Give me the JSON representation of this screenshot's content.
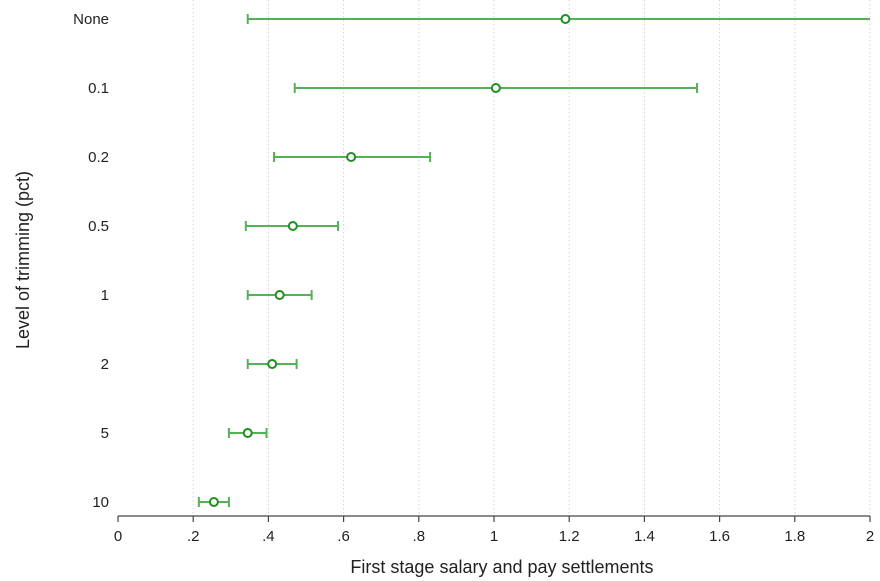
{
  "chart_data": {
    "type": "scatter",
    "orientation": "horizontal",
    "title": "",
    "xlabel": "First stage salary and pay settlements",
    "ylabel": "Level of trimming (pct)",
    "xlim": [
      0,
      2
    ],
    "x_ticks": [
      {
        "value": 0,
        "label": "0"
      },
      {
        "value": 0.2,
        "label": ".2"
      },
      {
        "value": 0.4,
        "label": ".4"
      },
      {
        "value": 0.6,
        "label": ".6"
      },
      {
        "value": 0.8,
        "label": ".8"
      },
      {
        "value": 1.0,
        "label": "1"
      },
      {
        "value": 1.2,
        "label": "1.2"
      },
      {
        "value": 1.4,
        "label": "1.4"
      },
      {
        "value": 1.6,
        "label": "1.6"
      },
      {
        "value": 1.8,
        "label": "1.8"
      },
      {
        "value": 2.0,
        "label": "2"
      }
    ],
    "grid": "vertical",
    "categories": [
      "None",
      "0.1",
      "0.2",
      "0.5",
      "1",
      "2",
      "5",
      "10"
    ],
    "estimates": [
      1.19,
      1.005,
      0.62,
      0.465,
      0.43,
      0.41,
      0.345,
      0.255
    ],
    "ci_low": [
      0.345,
      0.47,
      0.415,
      0.34,
      0.345,
      0.345,
      0.295,
      0.215
    ],
    "ci_high": [
      2.05,
      1.54,
      0.83,
      0.585,
      0.515,
      0.475,
      0.395,
      0.295
    ],
    "colors": {
      "line": "#55b155",
      "marker": "#1f8f1f"
    }
  }
}
